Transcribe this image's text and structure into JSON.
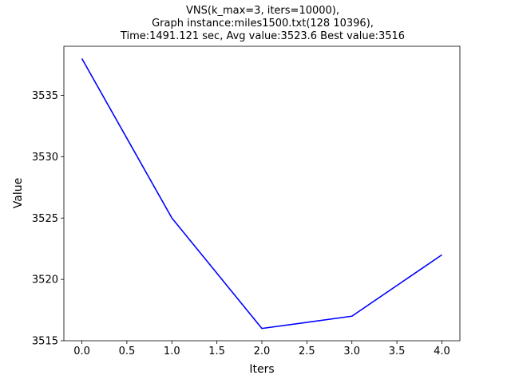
{
  "chart_data": {
    "type": "line",
    "title_lines": [
      "VNS(k_max=3, iters=10000),",
      "Graph instance:miles1500.txt(128 10396),",
      "Time:1491.121 sec, Avg value:3523.6 Best value:3516"
    ],
    "xlabel": "Iters",
    "ylabel": "Value",
    "x": [
      0,
      1,
      2,
      3,
      4
    ],
    "series": [
      {
        "values": [
          3538,
          3525,
          3516,
          3517,
          3522
        ],
        "color": "#0000ff"
      }
    ],
    "xlim": [
      -0.2,
      4.2
    ],
    "ylim": [
      3515,
      3539
    ],
    "xticks": [
      0.0,
      0.5,
      1.0,
      1.5,
      2.0,
      2.5,
      3.0,
      3.5,
      4.0
    ],
    "xtick_labels": [
      "0.0",
      "0.5",
      "1.0",
      "1.5",
      "2.0",
      "2.5",
      "3.0",
      "3.5",
      "4.0"
    ],
    "yticks": [
      3515,
      3520,
      3525,
      3530,
      3535
    ],
    "ytick_labels": [
      "3515",
      "3520",
      "3525",
      "3530",
      "3535"
    ],
    "grid": false,
    "legend": false
  }
}
